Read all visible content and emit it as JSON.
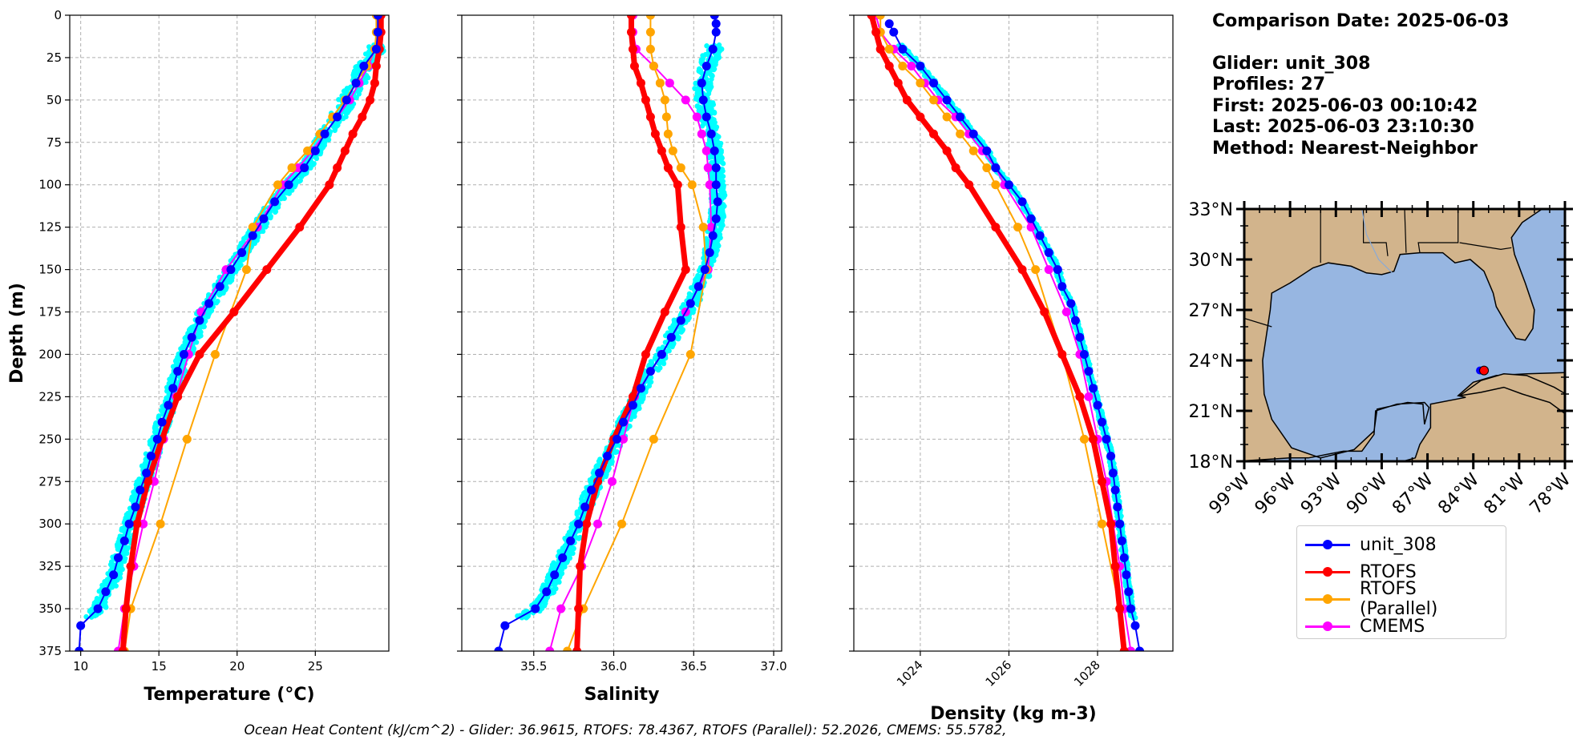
{
  "info": {
    "comparison_date": "Comparison Date: 2025-06-03",
    "glider": "Glider: unit_308",
    "profiles": "Profiles: 27",
    "first": "First: 2025-06-03 00:10:42",
    "last": "Last: 2025-06-03 23:10:30",
    "method": "Method: Nearest-Neighbor"
  },
  "footer": "Ocean Heat Content (kJ/cm^2) - Glider: 36.9615,  RTOFS: 78.4367,  RTOFS (Parallel): 52.2026,  CMEMS: 55.5782,",
  "legend": [
    {
      "name": "unit_308",
      "color": "#0000ff"
    },
    {
      "name": "RTOFS",
      "color": "#ff0000"
    },
    {
      "name": "RTOFS (Parallel)",
      "color": "#ffa500"
    },
    {
      "name": "CMEMS",
      "color": "#ff00ff"
    }
  ],
  "colors": {
    "glider_cloud": "#00ffff",
    "unit_308": "#0000ff",
    "RTOFS": "#ff0000",
    "RTOFS (Parallel)": "#ffa500",
    "CMEMS": "#ff00ff",
    "land": "#d2b48c",
    "ocean": "#97b6e1"
  },
  "chart_data": [
    {
      "type": "line",
      "xlabel": "Temperature (°C)",
      "ylabel": "Depth (m)",
      "xlim": [
        9.3,
        29.7
      ],
      "ylim": [
        375,
        0
      ],
      "xticks": [
        10,
        15,
        20,
        25
      ],
      "yticks": [
        0,
        25,
        50,
        75,
        100,
        125,
        150,
        175,
        200,
        225,
        250,
        275,
        300,
        325,
        350,
        375
      ],
      "grid": true,
      "series": [
        {
          "name": "unit_308",
          "depth": [
            0,
            10,
            20,
            30,
            40,
            50,
            60,
            70,
            80,
            90,
            100,
            110,
            120,
            130,
            140,
            150,
            160,
            170,
            180,
            190,
            200,
            210,
            220,
            230,
            240,
            250,
            260,
            270,
            280,
            290,
            300,
            310,
            320,
            330,
            340,
            350,
            360,
            375
          ],
          "values": [
            29.0,
            29.0,
            28.9,
            28.1,
            27.6,
            27.0,
            26.4,
            25.6,
            25.0,
            24.3,
            23.3,
            22.4,
            21.7,
            21.0,
            20.3,
            19.6,
            18.9,
            18.2,
            17.6,
            17.1,
            16.6,
            16.2,
            15.9,
            15.6,
            15.2,
            14.9,
            14.5,
            14.2,
            13.8,
            13.5,
            13.1,
            12.8,
            12.4,
            12.1,
            11.6,
            11.1,
            10.0,
            9.9
          ]
        },
        {
          "name": "RTOFS",
          "depth": [
            0,
            10,
            20,
            30,
            40,
            50,
            60,
            70,
            80,
            90,
            100,
            125,
            150,
            175,
            200,
            225,
            250,
            275,
            300,
            325,
            350,
            375
          ],
          "values": [
            29.2,
            29.2,
            29.1,
            28.9,
            28.8,
            28.5,
            28.0,
            27.4,
            26.9,
            26.4,
            25.9,
            24.0,
            21.9,
            19.8,
            17.6,
            16.2,
            15.2,
            14.3,
            13.6,
            13.2,
            12.9,
            12.7
          ]
        },
        {
          "name": "RTOFS (Parallel)",
          "depth": [
            0,
            10,
            20,
            30,
            40,
            50,
            60,
            70,
            80,
            90,
            100,
            125,
            150,
            200,
            250,
            300,
            350,
            375
          ],
          "values": [
            28.9,
            28.9,
            28.8,
            28.3,
            27.6,
            26.9,
            26.1,
            25.3,
            24.5,
            23.5,
            22.6,
            21.0,
            20.6,
            18.6,
            16.8,
            15.1,
            13.2,
            12.8
          ]
        },
        {
          "name": "CMEMS",
          "depth": [
            0,
            10,
            20,
            30,
            40,
            50,
            60,
            70,
            80,
            90,
            100,
            125,
            150,
            175,
            200,
            225,
            250,
            275,
            300,
            325,
            350,
            375
          ],
          "values": [
            29.0,
            29.0,
            28.8,
            28.4,
            27.8,
            27.2,
            26.4,
            25.6,
            24.8,
            23.9,
            22.9,
            21.3,
            19.3,
            17.7,
            16.9,
            16.1,
            15.3,
            14.7,
            14.0,
            13.4,
            12.8,
            12.4
          ]
        }
      ]
    },
    {
      "type": "line",
      "xlabel": "Salinity",
      "xlim": [
        35.05,
        37.05
      ],
      "ylim": [
        375,
        0
      ],
      "xticks": [
        35.5,
        36.0,
        36.5,
        37.0
      ],
      "grid": true,
      "series": [
        {
          "name": "unit_308",
          "depth": [
            0,
            5,
            10,
            20,
            30,
            40,
            50,
            60,
            70,
            80,
            90,
            100,
            110,
            120,
            130,
            140,
            150,
            160,
            170,
            180,
            190,
            200,
            210,
            220,
            230,
            240,
            250,
            260,
            270,
            280,
            290,
            300,
            310,
            320,
            330,
            340,
            350,
            360,
            375
          ],
          "values": [
            36.63,
            36.64,
            36.64,
            36.62,
            36.58,
            36.55,
            36.56,
            36.58,
            36.61,
            36.63,
            36.64,
            36.64,
            36.65,
            36.64,
            36.62,
            36.6,
            36.57,
            36.53,
            36.48,
            36.42,
            36.36,
            36.3,
            36.23,
            36.17,
            36.12,
            36.06,
            36.02,
            35.96,
            35.91,
            35.86,
            35.82,
            35.78,
            35.73,
            35.68,
            35.63,
            35.58,
            35.51,
            35.32,
            35.28
          ]
        },
        {
          "name": "RTOFS",
          "depth": [
            0,
            10,
            20,
            30,
            40,
            50,
            60,
            70,
            80,
            90,
            100,
            125,
            150,
            175,
            200,
            225,
            250,
            275,
            300,
            325,
            350,
            375
          ],
          "values": [
            36.11,
            36.11,
            36.12,
            36.13,
            36.17,
            36.2,
            36.23,
            36.26,
            36.3,
            36.34,
            36.4,
            36.42,
            36.45,
            36.32,
            36.2,
            36.12,
            36.0,
            35.9,
            35.83,
            35.79,
            35.78,
            35.77
          ]
        },
        {
          "name": "RTOFS (Parallel)",
          "depth": [
            0,
            10,
            20,
            30,
            40,
            50,
            60,
            70,
            80,
            90,
            100,
            125,
            150,
            200,
            250,
            300,
            350,
            375
          ],
          "values": [
            36.23,
            36.23,
            36.23,
            36.25,
            36.29,
            36.32,
            36.33,
            36.34,
            36.37,
            36.42,
            36.49,
            36.56,
            36.58,
            36.48,
            36.25,
            36.05,
            35.81,
            35.71
          ]
        },
        {
          "name": "CMEMS",
          "depth": [
            0,
            10,
            20,
            30,
            40,
            50,
            60,
            70,
            80,
            90,
            100,
            125,
            150,
            175,
            200,
            225,
            250,
            275,
            300,
            325,
            350,
            375
          ],
          "values": [
            36.12,
            36.12,
            36.14,
            36.25,
            36.35,
            36.45,
            36.52,
            36.55,
            36.58,
            36.59,
            36.6,
            36.61,
            36.59,
            36.45,
            36.3,
            36.13,
            36.06,
            35.99,
            35.9,
            35.8,
            35.67,
            35.6
          ]
        }
      ]
    },
    {
      "type": "line",
      "xlabel": "Density (kg m-3)",
      "xlim": [
        1022.5,
        1029.7
      ],
      "ylim": [
        375,
        0
      ],
      "xticks": [
        1024,
        1026,
        1028
      ],
      "grid": true,
      "series": [
        {
          "name": "unit_308",
          "depth": [
            5,
            10,
            20,
            30,
            40,
            50,
            60,
            70,
            80,
            90,
            100,
            110,
            120,
            130,
            140,
            150,
            160,
            170,
            180,
            190,
            200,
            210,
            220,
            230,
            240,
            250,
            260,
            270,
            280,
            290,
            300,
            310,
            320,
            330,
            340,
            350,
            360,
            375
          ],
          "values": [
            1023.3,
            1023.4,
            1023.6,
            1024.0,
            1024.3,
            1024.6,
            1024.9,
            1025.2,
            1025.5,
            1025.7,
            1026.0,
            1026.3,
            1026.5,
            1026.7,
            1026.9,
            1027.1,
            1027.2,
            1027.4,
            1027.5,
            1027.6,
            1027.7,
            1027.8,
            1027.9,
            1028.0,
            1028.1,
            1028.2,
            1028.3,
            1028.35,
            1028.4,
            1028.45,
            1028.5,
            1028.55,
            1028.6,
            1028.65,
            1028.7,
            1028.75,
            1028.85,
            1028.95
          ]
        },
        {
          "name": "RTOFS",
          "depth": [
            0,
            10,
            20,
            30,
            40,
            50,
            60,
            70,
            80,
            90,
            100,
            125,
            150,
            175,
            200,
            225,
            250,
            275,
            300,
            325,
            350,
            375
          ],
          "values": [
            1022.9,
            1023.0,
            1023.1,
            1023.3,
            1023.5,
            1023.7,
            1024.0,
            1024.3,
            1024.6,
            1024.8,
            1025.1,
            1025.7,
            1026.3,
            1026.8,
            1027.2,
            1027.6,
            1027.9,
            1028.1,
            1028.3,
            1028.4,
            1028.5,
            1028.6
          ]
        },
        {
          "name": "RTOFS (Parallel)",
          "depth": [
            0,
            10,
            20,
            30,
            40,
            50,
            60,
            70,
            80,
            90,
            100,
            125,
            150,
            200,
            250,
            300,
            350,
            375
          ],
          "values": [
            1023.1,
            1023.1,
            1023.3,
            1023.6,
            1024.0,
            1024.3,
            1024.6,
            1024.9,
            1025.2,
            1025.5,
            1025.7,
            1026.2,
            1026.6,
            1027.2,
            1027.7,
            1028.1,
            1028.5,
            1028.6
          ]
        },
        {
          "name": "CMEMS",
          "depth": [
            0,
            10,
            20,
            30,
            40,
            50,
            60,
            70,
            80,
            90,
            100,
            125,
            150,
            175,
            200,
            225,
            250,
            275,
            300,
            325,
            350,
            375
          ],
          "values": [
            1023.0,
            1023.1,
            1023.4,
            1023.8,
            1024.1,
            1024.4,
            1024.8,
            1025.1,
            1025.4,
            1025.7,
            1025.9,
            1026.5,
            1026.9,
            1027.3,
            1027.6,
            1027.8,
            1028.0,
            1028.2,
            1028.35,
            1028.5,
            1028.6,
            1028.75
          ]
        }
      ]
    }
  ],
  "map": {
    "lat_ticks": [
      "33°N",
      "30°N",
      "27°N",
      "24°N",
      "21°N",
      "18°N"
    ],
    "lon_ticks": [
      "99°W",
      "96°W",
      "93°W",
      "90°W",
      "87°W",
      "84°W",
      "81°W",
      "78°W"
    ],
    "lat_range": [
      18,
      33
    ],
    "lon_range": [
      -99,
      -78
    ],
    "glider_location": {
      "lat": 23.4,
      "lon": -83.3
    }
  }
}
